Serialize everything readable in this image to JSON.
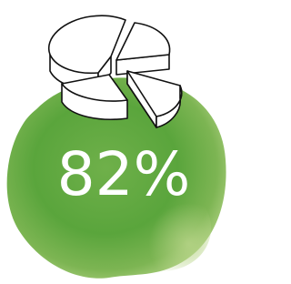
{
  "stat": {
    "label": "82%"
  }
}
